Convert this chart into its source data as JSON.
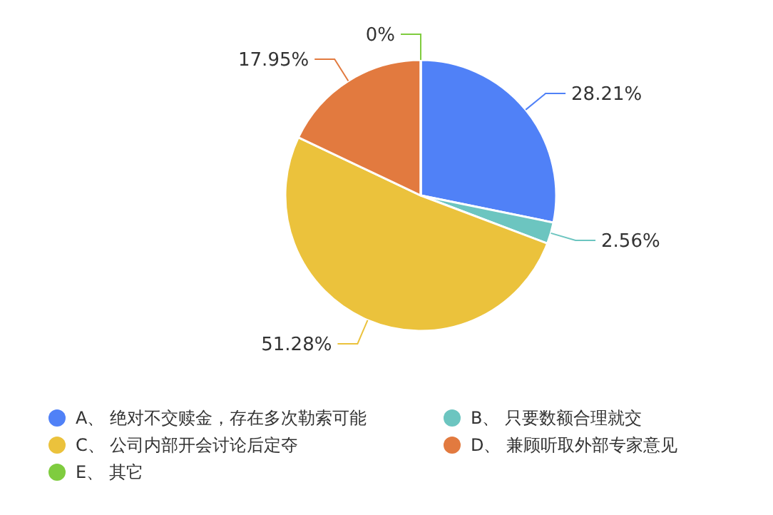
{
  "chart_data": {
    "type": "pie",
    "categories": [
      "A、 绝对不交赎金，存在多次勒索可能",
      "B、 只要数额合理就交",
      "C、 公司内部开会讨论后定夺",
      "D、 兼顾听取外部专家意见",
      "E、 其它"
    ],
    "values": [
      28.21,
      2.56,
      51.28,
      17.95,
      0
    ],
    "colors": [
      "#5081f7",
      "#6cc5c0",
      "#ebc23c",
      "#e27a3f",
      "#7fcc3f"
    ],
    "value_labels": [
      "28.21%",
      "2.56%",
      "51.28%",
      "17.95%",
      "0%"
    ],
    "legend": "bottom"
  }
}
